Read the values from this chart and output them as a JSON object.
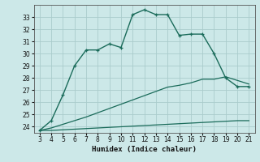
{
  "xlabel": "Humidex (Indice chaleur)",
  "background_color": "#cce8e8",
  "grid_color": "#aacccc",
  "line_color": "#1a6b5a",
  "x_main": [
    3,
    4,
    5,
    6,
    7,
    8,
    9,
    10,
    11,
    12,
    13,
    14,
    15,
    16,
    17,
    18,
    19,
    20,
    21
  ],
  "y_main": [
    23.7,
    24.5,
    26.6,
    29.0,
    30.3,
    30.3,
    30.8,
    30.5,
    33.2,
    33.6,
    33.2,
    33.2,
    31.5,
    31.6,
    31.6,
    30.0,
    28.0,
    27.3,
    27.3
  ],
  "x_line_flat": [
    3,
    4,
    5,
    6,
    7,
    8,
    9,
    10,
    11,
    12,
    13,
    14,
    15,
    16,
    17,
    18,
    19,
    20,
    21
  ],
  "y_line_flat": [
    23.7,
    23.7,
    23.75,
    23.8,
    23.85,
    23.9,
    23.95,
    24.0,
    24.05,
    24.1,
    24.15,
    24.2,
    24.25,
    24.3,
    24.35,
    24.4,
    24.45,
    24.5,
    24.5
  ],
  "x_line_diag": [
    3,
    4,
    5,
    6,
    7,
    8,
    9,
    10,
    11,
    12,
    13,
    14,
    15,
    16,
    17,
    18,
    19,
    20,
    21
  ],
  "y_line_diag": [
    23.7,
    23.9,
    24.2,
    24.5,
    24.8,
    25.15,
    25.5,
    25.85,
    26.2,
    26.55,
    26.9,
    27.25,
    27.4,
    27.6,
    27.9,
    27.9,
    28.1,
    27.8,
    27.5
  ],
  "ylim": [
    23.5,
    34.0
  ],
  "yticks": [
    24,
    25,
    26,
    27,
    28,
    29,
    30,
    31,
    32,
    33
  ],
  "xticks": [
    3,
    4,
    5,
    6,
    7,
    8,
    9,
    10,
    11,
    12,
    13,
    14,
    15,
    16,
    17,
    18,
    19,
    20,
    21
  ],
  "xlim": [
    2.5,
    21.5
  ]
}
